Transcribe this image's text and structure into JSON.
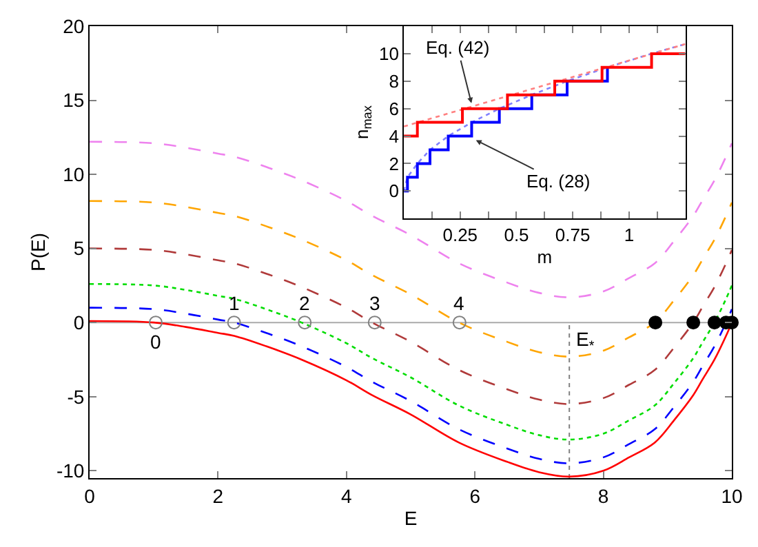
{
  "chart_data": [
    {
      "type": "line",
      "xlabel": "E",
      "ylabel": "P(E)",
      "xlim": [
        0,
        10
      ],
      "ylim": [
        -10.5,
        20
      ],
      "xticks": [
        0,
        2,
        4,
        6,
        8,
        10
      ],
      "yticks": [
        -10,
        -5,
        0,
        5,
        10,
        15,
        20
      ],
      "grid": false,
      "x": [
        0,
        1,
        1.5,
        2,
        2.25,
        2.75,
        3.3,
        4,
        4.4,
        5,
        5.75,
        6.5,
        7,
        7.47,
        8,
        8.4,
        8.8,
        9.1,
        9.4,
        9.55,
        9.73,
        9.91,
        10
      ],
      "series": [
        {
          "color": "#ff0000",
          "line_style": "solid",
          "values": [
            0.1,
            0,
            -0.3,
            -0.7,
            -0.9,
            -1.6,
            -2.5,
            -3.9,
            -4.9,
            -6.2,
            -8.1,
            -9.4,
            -10.1,
            -10.4,
            -10.0,
            -9.1,
            -8.1,
            -6.6,
            -4.9,
            -3.8,
            -2.5,
            -0.9,
            0
          ]
        },
        {
          "color": "#0000ff",
          "line_style": "dashed",
          "values": [
            1.0,
            0.9,
            0.6,
            0.2,
            0,
            -0.7,
            -1.6,
            -3.0,
            -4.0,
            -5.3,
            -7.2,
            -8.5,
            -9.2,
            -9.5,
            -9.1,
            -8.2,
            -7.2,
            -5.7,
            -4.0,
            -2.9,
            -1.6,
            0,
            0.9
          ]
        },
        {
          "color": "#00dd00",
          "line_style": "dotted",
          "values": [
            2.6,
            2.5,
            2.2,
            1.8,
            1.6,
            0.9,
            0,
            -1.4,
            -2.4,
            -3.7,
            -5.6,
            -6.9,
            -7.6,
            -7.9,
            -7.5,
            -6.6,
            -5.6,
            -4.1,
            -2.4,
            -1.3,
            0,
            1.6,
            2.5
          ]
        },
        {
          "color": "#b03a3a",
          "line_style": "dashed",
          "values": [
            5.0,
            4.9,
            4.6,
            4.2,
            4.0,
            3.3,
            2.4,
            1.0,
            0,
            -1.3,
            -3.2,
            -4.5,
            -5.2,
            -5.5,
            -5.1,
            -4.2,
            -3.2,
            -1.7,
            0,
            1.1,
            2.4,
            4.0,
            4.9
          ]
        },
        {
          "color": "#ffa500",
          "line_style": "dashed",
          "values": [
            8.2,
            8.1,
            7.8,
            7.4,
            7.2,
            6.5,
            5.6,
            4.2,
            3.2,
            1.9,
            0,
            -1.3,
            -2.0,
            -2.3,
            -1.9,
            -1.0,
            0,
            1.5,
            3.2,
            4.3,
            5.6,
            7.2,
            8.1
          ]
        },
        {
          "color": "#ee82ee",
          "line_style": "dashed",
          "values": [
            12.2,
            12.1,
            11.8,
            11.4,
            11.2,
            10.5,
            9.6,
            8.2,
            7.2,
            5.9,
            4.0,
            2.7,
            2.0,
            1.7,
            2.1,
            3.0,
            4.0,
            5.5,
            7.2,
            8.3,
            9.6,
            11.2,
            12.1
          ]
        },
        {
          "type": "scatter",
          "marker": "circle-open",
          "color": "#808080",
          "x": [
            1.03,
            2.25,
            3.35,
            4.44,
            5.76
          ],
          "values": [
            0,
            0,
            0,
            0,
            0
          ]
        },
        {
          "type": "scatter",
          "marker": "circle",
          "color": "#000000",
          "x": [
            8.81,
            9.4,
            9.73,
            9.91,
            10
          ],
          "values": [
            0,
            0,
            0,
            0,
            0
          ]
        }
      ],
      "ref_lines": [
        {
          "axis": "y",
          "value": 0,
          "color": "#aaaaaa",
          "line_style": "solid"
        },
        {
          "axis": "x",
          "value": 7.47,
          "color": "#808080",
          "line_style": "dotted",
          "label": "E$_{*}$"
        }
      ],
      "annotations": [
        {
          "text": "0",
          "x": 1.03,
          "y": 0
        },
        {
          "text": "1",
          "x": 2.25,
          "y": 0
        },
        {
          "text": "2",
          "x": 3.35,
          "y": 0
        },
        {
          "text": "3",
          "x": 4.44,
          "y": 0
        },
        {
          "text": "4",
          "x": 5.76,
          "y": 0
        }
      ]
    },
    {
      "type": "step",
      "xlabel": "m",
      "ylabel": "n$_{max}$",
      "xlim": [
        0,
        1.25
      ],
      "ylim": [
        -2,
        12
      ],
      "grid": false,
      "xticks": [
        {
          "value": 0.125,
          "label": null
        },
        0.25,
        {
          "value": 0.375,
          "label": null
        },
        0.5,
        {
          "value": 0.625,
          "label": null
        },
        0.75,
        {
          "value": 0.875,
          "label": null
        },
        1,
        {
          "value": 1.125,
          "label": null
        }
      ],
      "yticks": [
        0,
        2,
        4,
        6,
        8,
        10
      ],
      "series": [
        {
          "type": "line",
          "line_style": "dotted",
          "color": "#8080ff",
          "x": [
            0,
            0.016,
            0.06,
            0.116,
            0.197,
            0.301,
            0.424,
            0.568,
            0.725,
            0.904,
            1.1,
            1.25
          ],
          "values": [
            0,
            1,
            2,
            3,
            4,
            5,
            6,
            7,
            8,
            9,
            10,
            10.7
          ]
        },
        {
          "type": "line",
          "line_style": "dotted",
          "color": "#ff8080",
          "x": [
            0,
            0.25,
            0.5,
            0.75,
            1,
            1.25
          ],
          "values": [
            4.7,
            5.9,
            7.1,
            8.3,
            9.5,
            10.7
          ]
        },
        {
          "color": "#0000ff",
          "x": [
            0,
            0.016,
            0.06,
            0.116,
            0.197,
            0.301,
            0.424,
            0.568,
            0.725,
            0.904
          ],
          "values": [
            0,
            1,
            2,
            3,
            4,
            5,
            6,
            7,
            8,
            9
          ]
        },
        {
          "color": "#ff0000",
          "x": [
            0,
            0.06,
            0.26,
            0.46,
            0.67,
            0.88,
            1.1,
            1.25
          ],
          "values": [
            4,
            5,
            6,
            7,
            8,
            9,
            10,
            10
          ]
        }
      ],
      "annotations": [
        {
          "text": "Eq. (42)",
          "x": 0.3,
          "y": 6.4
        },
        {
          "text": "Eq. (28)",
          "x": 0.32,
          "y": 3.7
        }
      ]
    }
  ]
}
